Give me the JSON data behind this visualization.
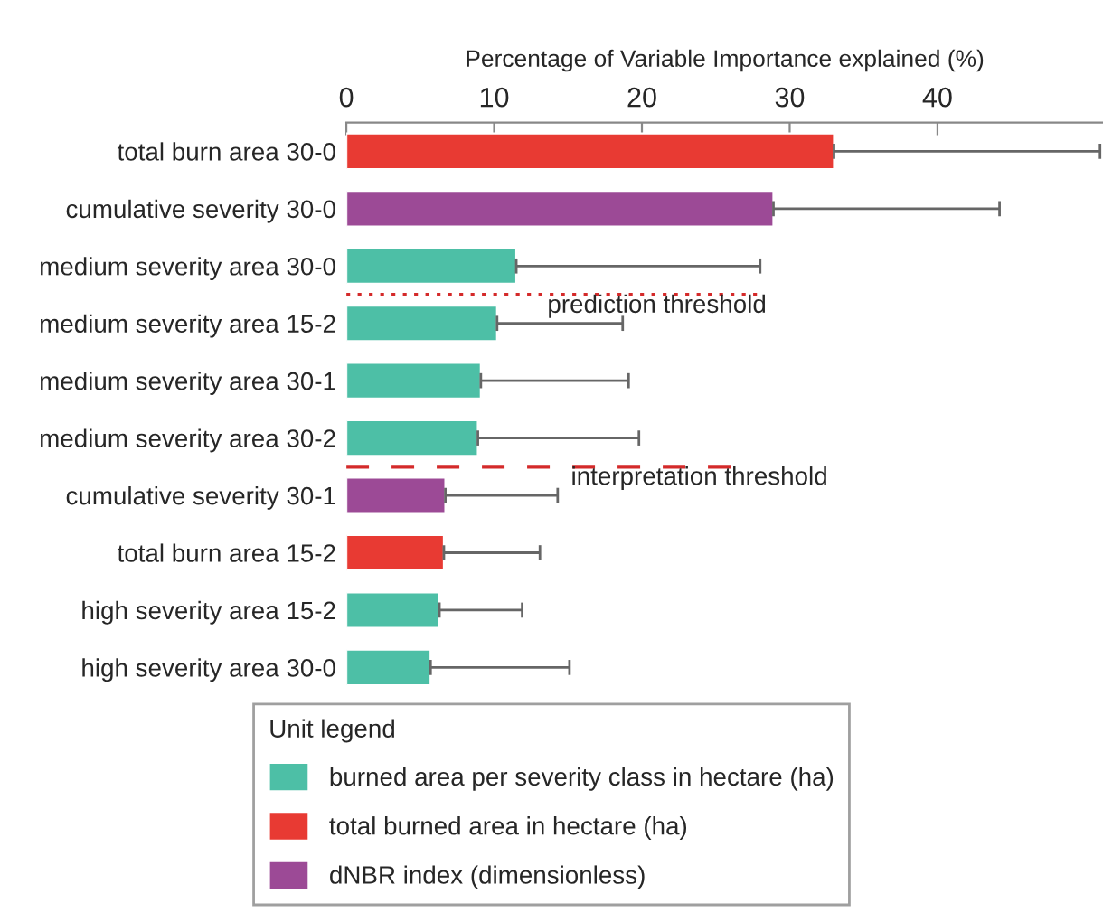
{
  "chart_data": {
    "type": "bar",
    "orientation": "horizontal",
    "xlabel": "Percentage of Variable Importance explained (%)",
    "categories": [
      "total burn area 30-0",
      "cumulative severity 30-0",
      "medium severity area 30-0",
      "medium severity area 15-2",
      "medium severity area 30-1",
      "medium severity area 30-2",
      "cumulative severity 30-1",
      "total burn area 15-2",
      "high severity area 15-2",
      "high severity area 30-0"
    ],
    "series": [
      {
        "name": "burned area per severity class in hectare (ha)",
        "color": "#4dbfa6",
        "values": [
          null,
          null,
          11.5,
          10.2,
          9.1,
          8.9,
          null,
          null,
          6.3,
          5.7
        ],
        "errors": [
          null,
          null,
          [
            11.5,
            28.0
          ],
          [
            10.2,
            18.7
          ],
          [
            9.1,
            19.1
          ],
          [
            8.9,
            19.8
          ],
          null,
          null,
          [
            6.3,
            11.9
          ],
          [
            5.7,
            15.1
          ]
        ]
      },
      {
        "name": "total burned area in hectare (ha)",
        "color": "#e83a33",
        "values": [
          33.0,
          null,
          null,
          null,
          null,
          null,
          null,
          6.6,
          null,
          null
        ],
        "errors": [
          [
            33.0,
            51.0
          ],
          null,
          null,
          null,
          null,
          null,
          null,
          [
            6.6,
            13.1
          ],
          null,
          null
        ]
      },
      {
        "name": "dNBR index (dimensionless)",
        "color": "#9c4a96",
        "values": [
          null,
          28.9,
          null,
          null,
          null,
          null,
          6.7,
          null,
          null,
          null
        ],
        "errors": [
          null,
          [
            28.9,
            44.2
          ],
          null,
          null,
          null,
          null,
          [
            6.7,
            14.3
          ],
          null,
          null,
          null
        ]
      }
    ],
    "xlim": [
      0,
      51.2
    ],
    "xticks": [
      0,
      10,
      20,
      30,
      40
    ],
    "annotations": [
      "prediction threshold",
      "interpretation threshold"
    ],
    "legend_title": "Unit legend",
    "legend": "bottom",
    "grid": false
  }
}
